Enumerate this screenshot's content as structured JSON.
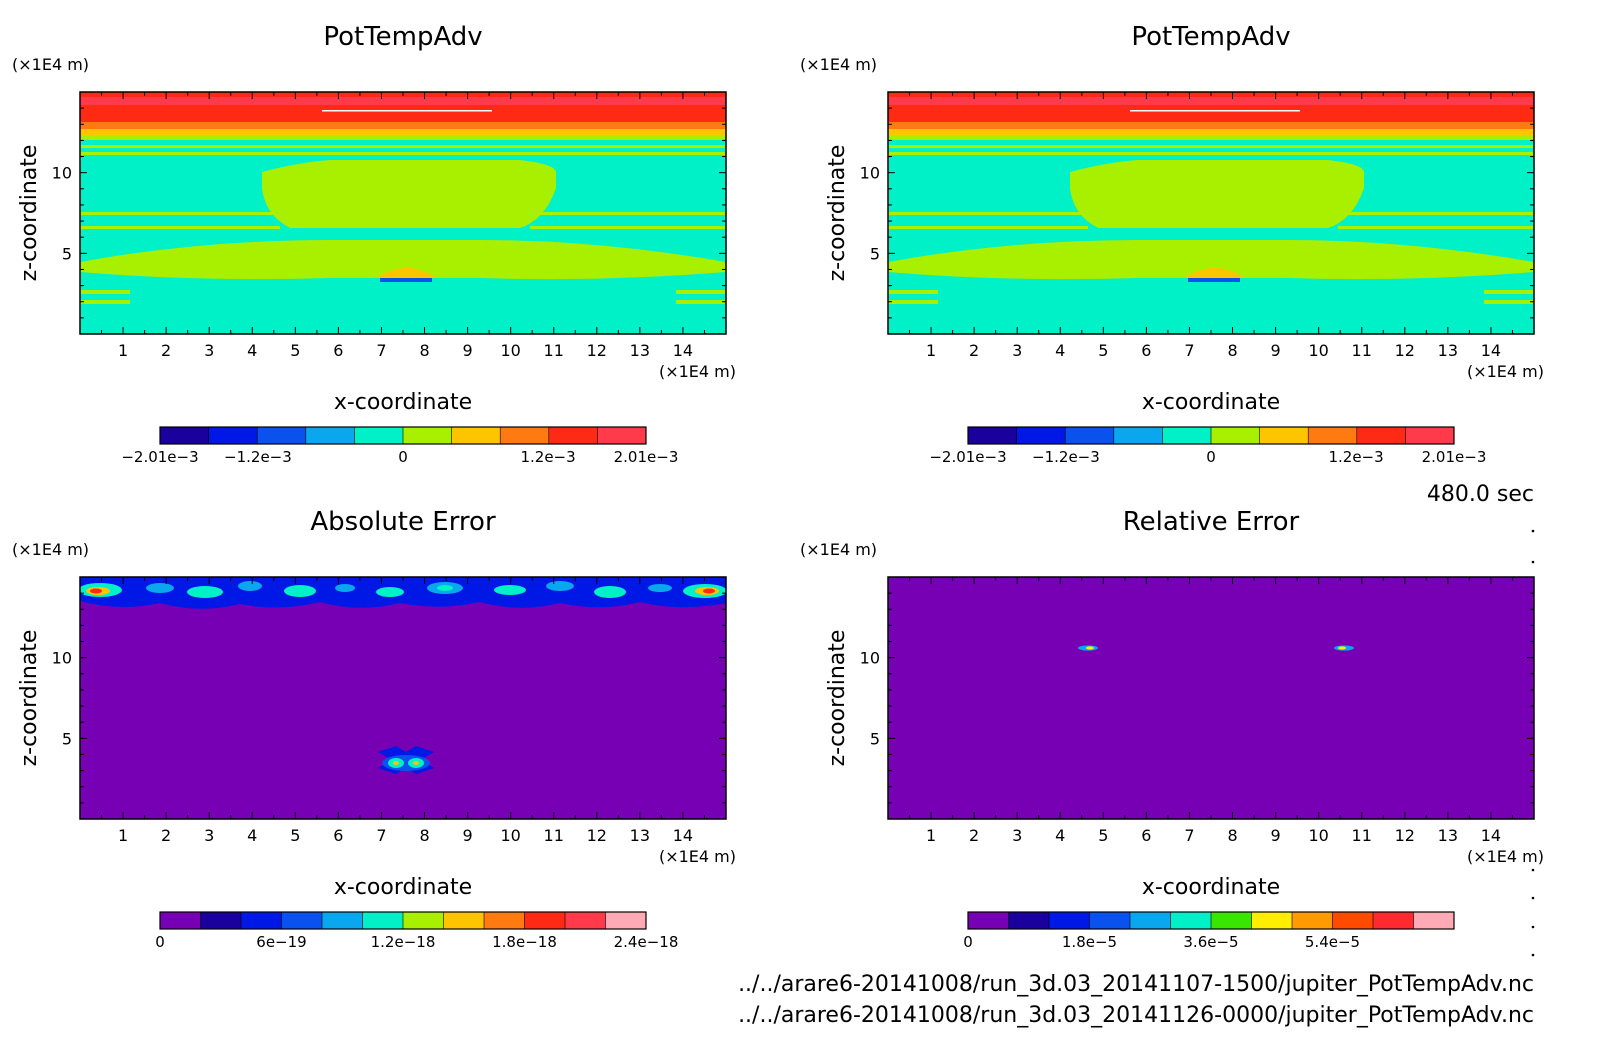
{
  "time_label": "480.0 sec",
  "files": [
    "../../arare6-20141008/run_3d.03_20141107-1500/jupiter_PotTempAdv.nc",
    "../../arare6-20141008/run_3d.03_20141126-0000/jupiter_PotTempAdv.nc"
  ],
  "chart_data": [
    {
      "type": "heatmap",
      "title": "PotTempAdv",
      "xlabel": "x-coordinate",
      "ylabel": "z-coordinate",
      "x_unit": "(×1E4 m)",
      "y_unit": "(×1E4 m)",
      "xlim": [
        0,
        15
      ],
      "ylim": [
        0,
        15
      ],
      "xticks": [
        "1",
        "2",
        "3",
        "4",
        "5",
        "6",
        "7",
        "8",
        "9",
        "10",
        "11",
        "12",
        "13",
        "14"
      ],
      "yticks": [
        "5",
        "10"
      ],
      "colorbar": {
        "range": [
          -0.00201,
          0.00201
        ],
        "ticks": [
          {
            "value": -0.00201,
            "label": "−2.01e−3"
          },
          {
            "value": -0.0012,
            "label": "−1.2e−3"
          },
          {
            "value": 0,
            "label": "0"
          },
          {
            "value": 0.0012,
            "label": "1.2e−3"
          },
          {
            "value": 0.00201,
            "label": "2.01e−3"
          }
        ],
        "colors": [
          "#1a009c",
          "#0018e6",
          "#0a52ee",
          "#0aa6ee",
          "#00f0c8",
          "#a8f000",
          "#ffc400",
          "#ff7a10",
          "#ff2a14",
          "#ff3a4a"
        ]
      }
    },
    {
      "type": "heatmap",
      "title": "PotTempAdv",
      "xlabel": "x-coordinate",
      "ylabel": "z-coordinate",
      "x_unit": "(×1E4 m)",
      "y_unit": "(×1E4 m)",
      "xlim": [
        0,
        15
      ],
      "ylim": [
        0,
        15
      ],
      "xticks": [
        "1",
        "2",
        "3",
        "4",
        "5",
        "6",
        "7",
        "8",
        "9",
        "10",
        "11",
        "12",
        "13",
        "14"
      ],
      "yticks": [
        "5",
        "10"
      ],
      "colorbar": {
        "range": [
          -0.00201,
          0.00201
        ],
        "ticks": [
          {
            "value": -0.00201,
            "label": "−2.01e−3"
          },
          {
            "value": -0.0012,
            "label": "−1.2e−3"
          },
          {
            "value": 0,
            "label": "0"
          },
          {
            "value": 0.0012,
            "label": "1.2e−3"
          },
          {
            "value": 0.00201,
            "label": "2.01e−3"
          }
        ],
        "colors": [
          "#1a009c",
          "#0018e6",
          "#0a52ee",
          "#0aa6ee",
          "#00f0c8",
          "#a8f000",
          "#ffc400",
          "#ff7a10",
          "#ff2a14",
          "#ff3a4a"
        ]
      }
    },
    {
      "type": "heatmap",
      "title": "Absolute Error",
      "xlabel": "x-coordinate",
      "ylabel": "z-coordinate",
      "x_unit": "(×1E4 m)",
      "y_unit": "(×1E4 m)",
      "xlim": [
        0,
        15
      ],
      "ylim": [
        0,
        15
      ],
      "xticks": [
        "1",
        "2",
        "3",
        "4",
        "5",
        "6",
        "7",
        "8",
        "9",
        "10",
        "11",
        "12",
        "13",
        "14"
      ],
      "yticks": [
        "5",
        "10"
      ],
      "colorbar": {
        "range": [
          0,
          2.4e-18
        ],
        "ticks": [
          {
            "value": 0,
            "label": "0"
          },
          {
            "value": 6e-19,
            "label": "6e−19"
          },
          {
            "value": 1.2e-18,
            "label": "1.2e−18"
          },
          {
            "value": 1.8e-18,
            "label": "1.8e−18"
          },
          {
            "value": 2.4e-18,
            "label": "2.4e−18"
          }
        ],
        "colors": [
          "#7800b4",
          "#1a009c",
          "#0018e6",
          "#0a52ee",
          "#0aa6ee",
          "#00f0c8",
          "#a8f000",
          "#ffc400",
          "#ff7a10",
          "#ff2a14",
          "#ff3a4a",
          "#ffaab4"
        ]
      }
    },
    {
      "type": "heatmap",
      "title": "Relative Error",
      "xlabel": "x-coordinate",
      "ylabel": "z-coordinate",
      "x_unit": "(×1E4 m)",
      "y_unit": "(×1E4 m)",
      "xlim": [
        0,
        15
      ],
      "ylim": [
        0,
        15
      ],
      "xticks": [
        "1",
        "2",
        "3",
        "4",
        "5",
        "6",
        "7",
        "8",
        "9",
        "10",
        "11",
        "12",
        "13",
        "14"
      ],
      "yticks": [
        "5",
        "10"
      ],
      "colorbar": {
        "range": [
          0,
          7.2e-05
        ],
        "ticks": [
          {
            "value": 0,
            "label": "0"
          },
          {
            "value": 1.8e-05,
            "label": "1.8e−5"
          },
          {
            "value": 3.6e-05,
            "label": "3.6e−5"
          },
          {
            "value": 5.4e-05,
            "label": "5.4e−5"
          }
        ],
        "colors": [
          "#7800b4",
          "#1a009c",
          "#0018e6",
          "#0a52ee",
          "#0aa6ee",
          "#00f0c8",
          "#3ae600",
          "#ffee00",
          "#ff9a00",
          "#ff4a00",
          "#ff2a30",
          "#ffaab4"
        ]
      }
    }
  ]
}
